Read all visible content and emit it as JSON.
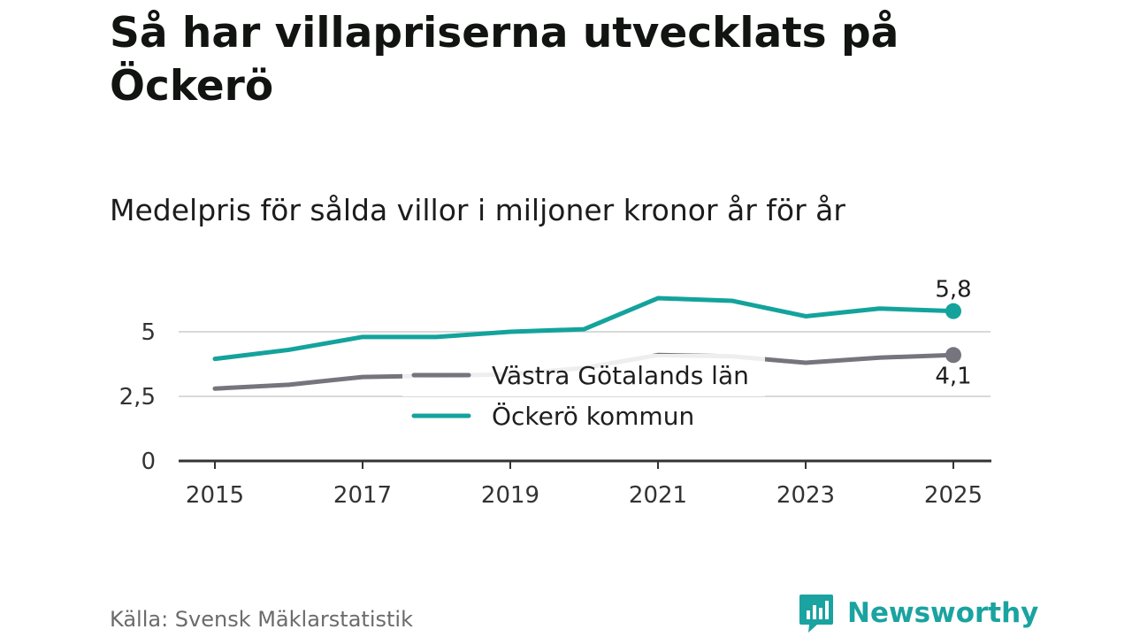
{
  "title": "Så har villapriserna utvecklats på Öckerö",
  "subtitle": "Medelpris för sålda villor i miljoner kronor år för år",
  "source": "Källa: Svensk Mäklarstatistik",
  "brand": {
    "name": "Newsworthy",
    "icon": "newsworthy-logo-icon"
  },
  "colors": {
    "ockero": "#13a39c",
    "vastra": "#76747c",
    "grid": "#d9d9d9",
    "axis": "#333333",
    "brand": "#1aa3a0"
  },
  "chart_data": {
    "type": "line",
    "x": [
      2015,
      2016,
      2017,
      2018,
      2019,
      2020,
      2021,
      2022,
      2023,
      2024,
      2025
    ],
    "series": [
      {
        "name": "Västra Götalands län",
        "key": "vastra",
        "values": [
          2.8,
          2.95,
          3.25,
          3.3,
          3.35,
          3.6,
          4.1,
          4.05,
          3.8,
          4.0,
          4.1
        ],
        "end_label": "4,1"
      },
      {
        "name": "Öckerö kommun",
        "key": "ockero",
        "values": [
          3.95,
          4.3,
          4.8,
          4.8,
          5.0,
          5.1,
          6.3,
          6.2,
          5.6,
          5.9,
          5.8
        ],
        "end_label": "5,8"
      }
    ],
    "xticks": [
      "2015",
      "2017",
      "2019",
      "2021",
      "2023",
      "2025"
    ],
    "yticks": [
      {
        "value": 0,
        "label": "0"
      },
      {
        "value": 2.5,
        "label": "2,5"
      },
      {
        "value": 5,
        "label": "5"
      }
    ],
    "ylim": [
      0,
      7
    ],
    "xlabel": "",
    "ylabel": "",
    "legend": {
      "placement": "center",
      "entries": [
        "Västra Götalands län",
        "Öckerö kommun"
      ]
    }
  }
}
